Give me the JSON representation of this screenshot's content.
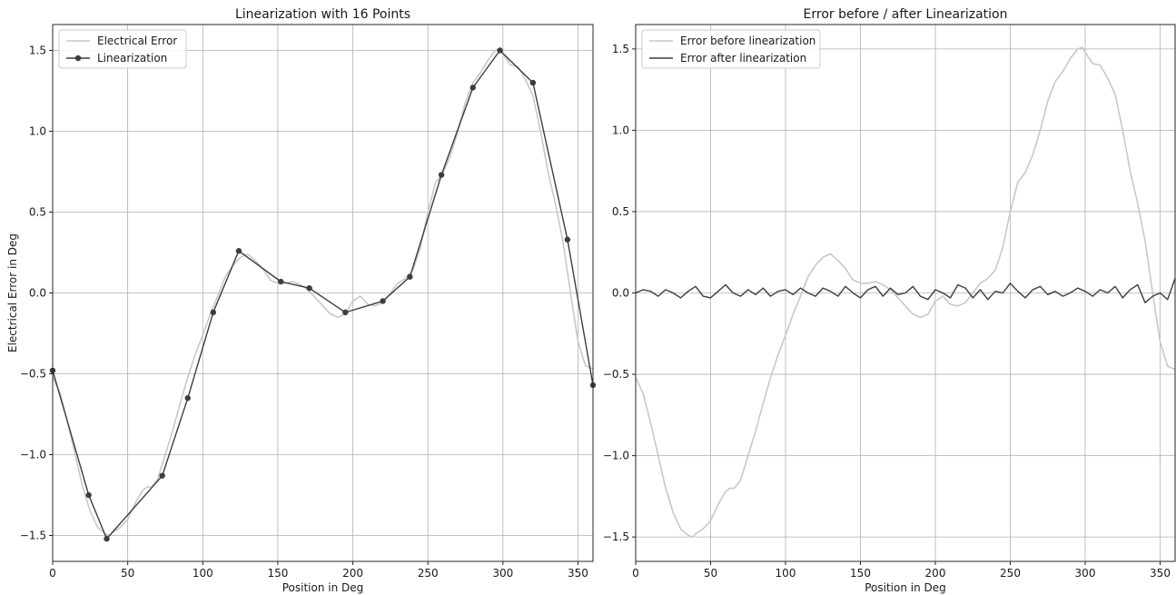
{
  "chart_data": [
    {
      "type": "line",
      "title": "Linearization with 16 Points",
      "xlabel": "Position in Deg",
      "ylabel": "Electrical Error in Deg",
      "xlim": [
        0,
        360
      ],
      "ylim": [
        -1.66,
        1.66
      ],
      "xticks": [
        0,
        50,
        100,
        150,
        200,
        250,
        300,
        350
      ],
      "yticks": [
        -1.5,
        -1.0,
        -0.5,
        0.0,
        0.5,
        1.0,
        1.5
      ],
      "xtick_labels": [
        "0",
        "50",
        "100",
        "150",
        "200",
        "250",
        "300",
        "350"
      ],
      "ytick_labels": [
        "−1.5",
        "−1.0",
        "−0.5",
        "0.0",
        "0.5",
        "1.0",
        "1.5"
      ],
      "grid": true,
      "legend_position": "top-left",
      "series": [
        {
          "name": "Electrical Error",
          "color": "#c8c8c8",
          "marker": false,
          "x": [
            0,
            5,
            10,
            15,
            20,
            25,
            30,
            35,
            38,
            40,
            45,
            50,
            55,
            60,
            63,
            66,
            70,
            75,
            80,
            85,
            90,
            95,
            100,
            105,
            110,
            115,
            120,
            125,
            130,
            135,
            140,
            145,
            150,
            155,
            160,
            165,
            170,
            175,
            180,
            185,
            190,
            195,
            200,
            205,
            210,
            215,
            220,
            225,
            230,
            235,
            240,
            245,
            250,
            255,
            260,
            265,
            270,
            275,
            280,
            285,
            290,
            295,
            298,
            300,
            305,
            310,
            315,
            320,
            325,
            330,
            335,
            340,
            345,
            350,
            355,
            360
          ],
          "y": [
            -0.52,
            -0.62,
            -0.8,
            -1.0,
            -1.2,
            -1.35,
            -1.45,
            -1.49,
            -1.5,
            -1.48,
            -1.45,
            -1.4,
            -1.3,
            -1.22,
            -1.2,
            -1.2,
            -1.15,
            -1.0,
            -0.85,
            -0.68,
            -0.52,
            -0.38,
            -0.26,
            -0.13,
            -0.02,
            0.1,
            0.17,
            0.22,
            0.24,
            0.2,
            0.15,
            0.08,
            0.06,
            0.06,
            0.07,
            0.05,
            0.02,
            -0.03,
            -0.08,
            -0.13,
            -0.15,
            -0.13,
            -0.05,
            -0.02,
            -0.07,
            -0.08,
            -0.06,
            0.0,
            0.06,
            0.09,
            0.14,
            0.28,
            0.5,
            0.68,
            0.74,
            0.85,
            1.0,
            1.18,
            1.3,
            1.36,
            1.44,
            1.5,
            1.51,
            1.48,
            1.41,
            1.4,
            1.32,
            1.22,
            1.0,
            0.75,
            0.55,
            0.32,
            0.0,
            -0.3,
            -0.45,
            -0.47
          ]
        },
        {
          "name": "Linearization",
          "color": "#3d3d3d",
          "marker": true,
          "x": [
            0,
            24,
            36,
            73,
            90,
            107,
            124,
            152,
            171,
            195,
            220,
            238,
            259,
            280,
            298,
            320,
            343,
            360
          ],
          "y": [
            -0.48,
            -1.25,
            -1.52,
            -1.13,
            -0.65,
            -0.12,
            0.26,
            0.07,
            0.03,
            -0.12,
            -0.05,
            0.1,
            0.73,
            1.27,
            1.5,
            1.3,
            0.33,
            -0.57
          ]
        }
      ]
    },
    {
      "type": "line",
      "title": "Error before / after Linearization",
      "xlabel": "Position in Deg",
      "ylabel": "",
      "xlim": [
        0,
        360
      ],
      "ylim": [
        -1.65,
        1.65
      ],
      "xticks": [
        0,
        50,
        100,
        150,
        200,
        250,
        300,
        350
      ],
      "yticks": [
        -1.5,
        -1.0,
        -0.5,
        0.0,
        0.5,
        1.0,
        1.5
      ],
      "xtick_labels": [
        "0",
        "50",
        "100",
        "150",
        "200",
        "250",
        "300",
        "350"
      ],
      "ytick_labels": [
        "−1.5",
        "−1.0",
        "−0.5",
        "0.0",
        "0.5",
        "1.0",
        "1.5"
      ],
      "grid": true,
      "legend_position": "top-left",
      "series": [
        {
          "name": "Error before linearization",
          "color": "#c8c8c8",
          "marker": false,
          "x": [
            0,
            5,
            10,
            15,
            20,
            25,
            30,
            35,
            38,
            40,
            45,
            50,
            55,
            60,
            63,
            66,
            70,
            75,
            80,
            85,
            90,
            95,
            100,
            105,
            110,
            115,
            120,
            125,
            130,
            135,
            140,
            145,
            150,
            155,
            160,
            165,
            170,
            175,
            180,
            185,
            190,
            195,
            200,
            205,
            210,
            215,
            220,
            225,
            230,
            235,
            240,
            245,
            250,
            255,
            260,
            265,
            270,
            275,
            280,
            285,
            290,
            295,
            298,
            300,
            305,
            310,
            315,
            320,
            325,
            330,
            335,
            340,
            345,
            350,
            355,
            360
          ],
          "y": [
            -0.52,
            -0.62,
            -0.8,
            -1.0,
            -1.2,
            -1.35,
            -1.45,
            -1.49,
            -1.5,
            -1.48,
            -1.45,
            -1.4,
            -1.3,
            -1.22,
            -1.2,
            -1.2,
            -1.15,
            -1.0,
            -0.85,
            -0.68,
            -0.52,
            -0.38,
            -0.26,
            -0.13,
            -0.02,
            0.1,
            0.17,
            0.22,
            0.24,
            0.2,
            0.15,
            0.08,
            0.06,
            0.06,
            0.07,
            0.05,
            0.02,
            -0.03,
            -0.08,
            -0.13,
            -0.15,
            -0.13,
            -0.05,
            -0.02,
            -0.07,
            -0.08,
            -0.06,
            0.0,
            0.06,
            0.09,
            0.14,
            0.28,
            0.5,
            0.68,
            0.74,
            0.85,
            1.0,
            1.18,
            1.3,
            1.36,
            1.44,
            1.5,
            1.51,
            1.48,
            1.41,
            1.4,
            1.32,
            1.22,
            1.0,
            0.75,
            0.55,
            0.32,
            0.0,
            -0.3,
            -0.45,
            -0.47
          ]
        },
        {
          "name": "Error after linearization",
          "color": "#3d3d3d",
          "marker": false,
          "x": [
            0,
            5,
            10,
            15,
            20,
            25,
            30,
            35,
            40,
            45,
            50,
            55,
            60,
            65,
            70,
            75,
            80,
            85,
            90,
            95,
            100,
            105,
            110,
            115,
            120,
            125,
            130,
            135,
            140,
            145,
            150,
            155,
            160,
            165,
            170,
            175,
            180,
            185,
            190,
            195,
            200,
            205,
            210,
            215,
            220,
            225,
            230,
            235,
            240,
            245,
            250,
            255,
            260,
            265,
            270,
            275,
            280,
            285,
            290,
            295,
            300,
            305,
            310,
            315,
            320,
            325,
            330,
            335,
            340,
            345,
            350,
            355,
            360
          ],
          "y": [
            0.0,
            0.02,
            0.01,
            -0.02,
            0.02,
            0.0,
            -0.03,
            0.01,
            0.04,
            -0.02,
            -0.03,
            0.01,
            0.05,
            0.0,
            -0.02,
            0.02,
            -0.01,
            0.03,
            -0.02,
            0.01,
            0.02,
            -0.01,
            0.03,
            0.0,
            -0.02,
            0.03,
            0.01,
            -0.02,
            0.04,
            0.0,
            -0.03,
            0.02,
            0.04,
            -0.02,
            0.03,
            -0.01,
            0.0,
            0.04,
            -0.02,
            -0.04,
            0.02,
            0.0,
            -0.03,
            0.05,
            0.03,
            -0.03,
            0.02,
            -0.04,
            0.01,
            0.0,
            0.06,
            0.01,
            -0.03,
            0.02,
            0.04,
            -0.01,
            0.01,
            -0.02,
            0.0,
            0.03,
            0.01,
            -0.02,
            0.02,
            0.0,
            0.04,
            -0.03,
            0.02,
            0.05,
            -0.06,
            -0.02,
            0.0,
            -0.04,
            0.09
          ]
        }
      ]
    }
  ]
}
